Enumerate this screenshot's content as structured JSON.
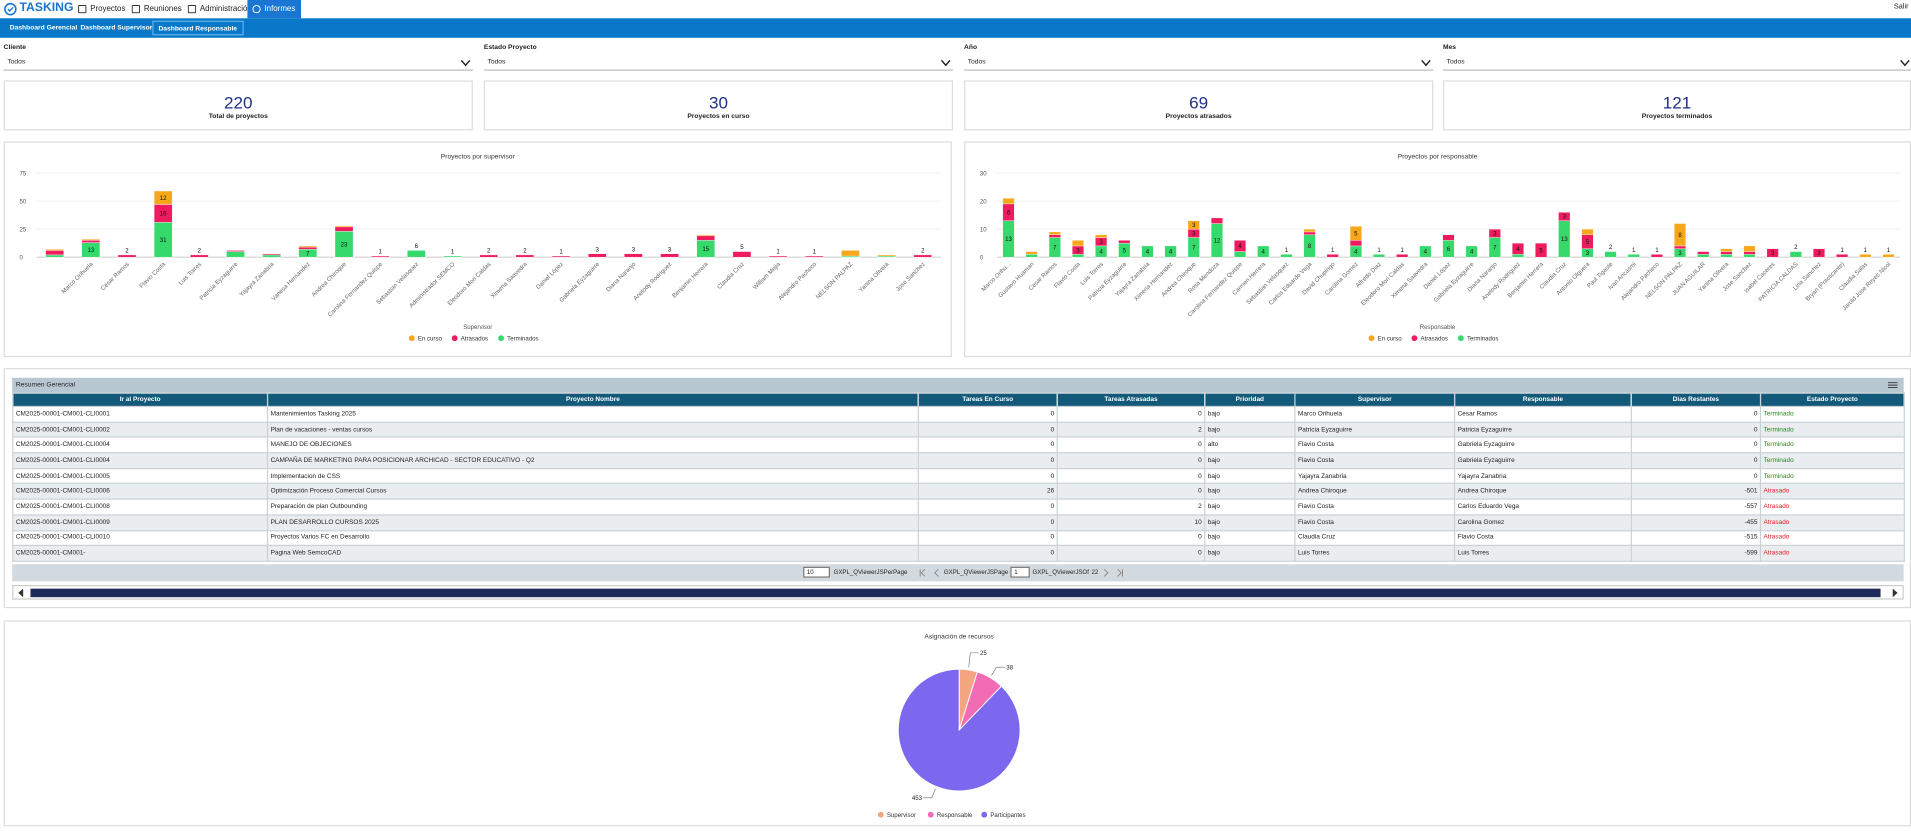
{
  "nav": {
    "brand": "TASKING",
    "items": [
      "Proyectos",
      "Reuniones",
      "Administración",
      "Informes"
    ],
    "active": 3,
    "exit": "Salir"
  },
  "tabs": [
    "Dashboard Gerencial",
    "Dashboard Supervisor",
    "Dashboard Responsable"
  ],
  "filters": [
    {
      "label": "Cliente",
      "value": "Todos"
    },
    {
      "label": "Estado Proyecto",
      "value": "Todos"
    },
    {
      "label": "Año",
      "value": "Todos"
    },
    {
      "label": "Mes",
      "value": "Todos"
    }
  ],
  "kpis": [
    {
      "value": 220,
      "label": "Total de proyectos"
    },
    {
      "value": 30,
      "label": "Proyectos en curso"
    },
    {
      "value": 69,
      "label": "Proyectos atrasados"
    },
    {
      "value": 121,
      "label": "Proyectos terminados"
    }
  ],
  "chart_data": [
    {
      "type": "bar",
      "stacked": true,
      "title": "Proyectos por supervisor",
      "x_label": "Supervisor",
      "legend": "bottom",
      "grid": true,
      "categories": [
        null,
        "Marco Orihuela",
        "Cesar Ramos",
        "Flavio Costa",
        "Luis Torres",
        "Patricia Eyzaguirre",
        "Yajayra Zanabria",
        "Vanesa Hernandez",
        "Andrea Chiroque",
        "Carolina Fernandez Quispe",
        "Sebastian Velasquez",
        "Administrador SEMCO",
        "Eleodoro Mori Caldas",
        "Ximena Saavedra",
        "Daniel López",
        "Gabriela Eyzaguirre",
        "Diana Naranjo",
        "Anelody Rodriguez",
        "Benjamin Herrera",
        "Claudia Cruz",
        "William Mejia",
        "Alejandro Pacheco",
        "NELSON PALPAZ",
        "Yanina Olivera",
        "Jose Sanchez"
      ],
      "series": [
        {
          "name": "En curso",
          "color": "#f7a71c",
          "values": [
            1,
            1,
            0,
            12,
            0,
            0,
            0,
            1,
            1,
            0,
            0,
            0,
            0,
            0,
            0,
            0,
            0,
            0,
            1,
            0,
            0,
            0,
            5,
            1,
            0
          ]
        },
        {
          "name": "Atrasados",
          "color": "#ee1c5f",
          "values": [
            4,
            2,
            2,
            16,
            2,
            1,
            1,
            2,
            4,
            1,
            0,
            0,
            2,
            2,
            1,
            3,
            3,
            3,
            4,
            5,
            1,
            1,
            0,
            0,
            2
          ]
        },
        {
          "name": "Terminados",
          "color": "#36d96b",
          "values": [
            2,
            13,
            0,
            31,
            0,
            5,
            2,
            7,
            23,
            0,
            6,
            1,
            0,
            0,
            0,
            0,
            0,
            0,
            15,
            0,
            0,
            0,
            1,
            1,
            0
          ]
        }
      ],
      "ylim": [
        0,
        75
      ],
      "yticks": [
        0,
        25,
        50,
        75
      ]
    },
    {
      "type": "bar",
      "stacked": true,
      "title": "Proyectos por responsable",
      "x_label": "Responsable",
      "legend": "bottom",
      "grid": true,
      "categories": [
        "Marco Orihu...",
        "Gustavo Huaman",
        "Cesar Ramos",
        "Flavio Costa",
        "Luis Torres",
        "Patricia Eyzaguirre",
        "Yajayra Zanabria",
        "Ximena Hernandez",
        "Andrea Chiroque",
        "Rosa Mendoza",
        "Carolina Fernandez Quispe",
        "Carmen Herrera",
        "Sebastian Velasquez",
        "Carlos Eduardo Vega",
        "David Chupingo",
        "Carolina Gomez",
        "Alfredo Diaz",
        "Eleodoro Mori Caldas",
        "Ximena Saavedra",
        "Daniel López",
        "Gabriela Eyzaguirre",
        "Diana Naranjo",
        "Anelody Rodriguez",
        "Benjamin Herrera",
        "Claudia Cruz",
        "Antonio Olguera",
        "Paul Tigaste",
        "Ivan Ancasmi",
        "Alejandro Pacheco",
        "NELSON PALPAZ",
        "JUAN AGUILAR",
        "Yanina Olivera",
        "Jose Sanchez",
        "Isabel Caceres",
        "PATRICIA CALDAS",
        "Lina Sanchez",
        "Bryan (Practicante)",
        "Claudia Salas",
        "Jarold Jose Reyes Nicol"
      ],
      "series": [
        {
          "name": "En curso",
          "color": "#f7a71c",
          "values": [
            2,
            1,
            1,
            2,
            1,
            0,
            0,
            0,
            3,
            0,
            0,
            0,
            0,
            1,
            0,
            5,
            0,
            0,
            0,
            0,
            0,
            0,
            0,
            0,
            0,
            2,
            0,
            0,
            0,
            8,
            0,
            1,
            2,
            0,
            0,
            0,
            0,
            1,
            1
          ]
        },
        {
          "name": "Atrasados",
          "color": "#ee1c5f",
          "values": [
            6,
            0,
            1,
            3,
            3,
            1,
            0,
            0,
            3,
            2,
            4,
            0,
            0,
            1,
            1,
            2,
            0,
            1,
            0,
            2,
            0,
            3,
            4,
            5,
            3,
            5,
            0,
            0,
            1,
            1,
            1,
            1,
            1,
            3,
            0,
            3,
            1,
            0,
            0
          ]
        },
        {
          "name": "Terminados",
          "color": "#36d96b",
          "values": [
            13,
            1,
            7,
            1,
            4,
            5,
            4,
            4,
            7,
            12,
            2,
            4,
            1,
            8,
            0,
            4,
            1,
            0,
            4,
            6,
            4,
            7,
            1,
            0,
            13,
            3,
            2,
            1,
            0,
            3,
            1,
            1,
            1,
            0,
            2,
            0,
            0,
            0,
            0
          ]
        }
      ],
      "ylim": [
        0,
        30
      ],
      "yticks": [
        0,
        10,
        20,
        30
      ]
    },
    {
      "type": "pie",
      "title": "Asignación de recursos",
      "legend": "bottom",
      "categories": [
        "Supervisor",
        "Responsable",
        "Participantes"
      ],
      "values": [
        25,
        38,
        453
      ],
      "colors": [
        "#f4a582",
        "#f26bb5",
        "#7b68ee"
      ]
    }
  ],
  "table": {
    "title": "Resumen Gerencial",
    "columns": [
      "Ir al Proyecto",
      "Proyecto Nombre",
      "Tareas En Curso",
      "Tareas Atrasadas",
      "Prioridad",
      "Supervisor",
      "Responsable",
      "Dias Restantes",
      "Estado Proyecto"
    ],
    "rows": [
      [
        "CM2025-00001-CM001-CLI0001",
        "Mantenimientos Tasking 2025",
        0,
        0,
        "bajo",
        "Marco Orihuela",
        "Cesar Ramos",
        0,
        "Terminado"
      ],
      [
        "CM2025-00001-CM001-CLI0002",
        "Plan de vacaciones - ventas cursos",
        0,
        2,
        "bajo",
        "Patricia Eyzaguirre",
        "Patricia Eyzaguirre",
        0,
        "Terminado"
      ],
      [
        "CM2025-00001-CM001-CLI0004",
        "MANEJO DE OBJECIONES",
        0,
        0,
        "alto",
        "Flavio Costa",
        "Gabriela Eyzaguirre",
        0,
        "Terminado"
      ],
      [
        "CM2025-00001-CM001-CLI0004",
        "CAMPAÑA DE MARKETING PARA POSICIONAR ARCHICAD - SECTOR EDUCATIVO - Q2",
        0,
        0,
        "bajo",
        "Flavio Costa",
        "Gabriela Eyzaguirre",
        0,
        "Terminado"
      ],
      [
        "CM2025-00001-CM001-CLI0005",
        "Implementacion de CSS",
        0,
        0,
        "bajo",
        "Yajayra Zanabria",
        "Yajayra Zanabria",
        0,
        "Terminado"
      ],
      [
        "CM2025-00001-CM001-CLI0006",
        "Optimización Proceso Comercial Cursos",
        26,
        0,
        "bajo",
        "Andrea Chiroque",
        "Andrea Chiroque",
        -501,
        "Atrasado"
      ],
      [
        "CM2025-00001-CM001-CLI0008",
        "Preparación de plan Outbounding",
        0,
        2,
        "bajo",
        "Flavio Costa",
        "Carlos Eduardo Vega",
        -557,
        "Atrasado"
      ],
      [
        "CM2025-00001-CM001-CLI0009",
        "PLAN DESARROLLO CURSOS 2025",
        0,
        10,
        "bajo",
        "Flavio Costa",
        "Carolina Gomez",
        -455,
        "Atrasado"
      ],
      [
        "CM2025-00001-CM001-CLI0010",
        "Proyectos Varios FC en Desarrollo",
        0,
        0,
        "bajo",
        "Claudia Cruz",
        "Flavio Costa",
        -515,
        "Atrasado"
      ],
      [
        "CM2025-00001-CM001-",
        "Pagina Web SemcoCAD",
        0,
        0,
        "bajo",
        "Luis Torres",
        "Luis Torres",
        -599,
        "Atrasado"
      ]
    ],
    "status_colors": {
      "Terminado": "#1a8f1a",
      "Atrasado": "#e02020"
    },
    "pager": {
      "per_page": 10,
      "per_page_label": "GXPL_QViewerJSPerPage",
      "page_label": "GXPL_QViewerJSPage",
      "page": 1,
      "of_label": "GXPL_QViewerJSOf",
      "pages": 22
    }
  }
}
